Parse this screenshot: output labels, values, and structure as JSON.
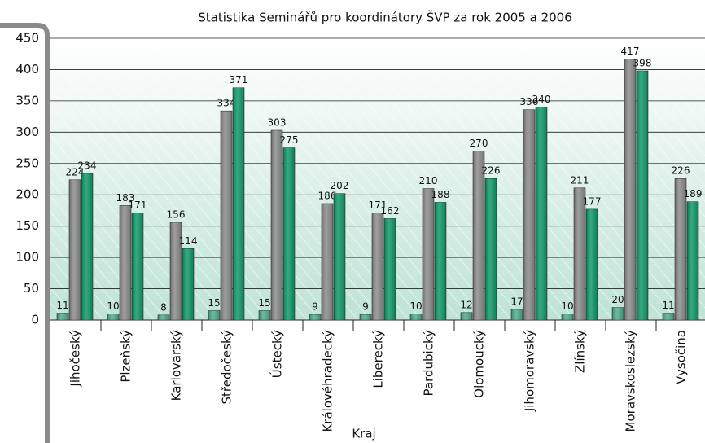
{
  "chart_data": {
    "type": "bar",
    "title": "Statistika Seminářů pro koordinátory ŠVP za rok 2005 a 2006",
    "x_label": "Kraj",
    "categories": [
      "Jihočeský",
      "Plzeňský",
      "Karlovarský",
      "Středočeský",
      "Ústecký",
      "Královéhradecký",
      "Liberecký",
      "Pardubický",
      "Olomoucký",
      "Jihomoravský",
      "Zlínský",
      "Moravskoslezský",
      "Vysočina"
    ],
    "series": [
      {
        "color": "#4fae8c",
        "values": [
          11,
          10,
          8,
          15,
          15,
          9,
          9,
          10,
          12,
          17,
          10,
          20,
          11
        ]
      },
      {
        "color": "#8c8c8c",
        "values": [
          224,
          183,
          156,
          334,
          303,
          186,
          171,
          210,
          270,
          336,
          211,
          417,
          226
        ]
      },
      {
        "color": "#0f9a68",
        "values": [
          234,
          171,
          114,
          371,
          275,
          202,
          162,
          188,
          226,
          340,
          177,
          398,
          189
        ]
      }
    ],
    "ylim": [
      0,
      450
    ],
    "yticks": [
      0,
      50,
      100,
      150,
      200,
      250,
      300,
      350,
      400,
      450
    ],
    "grid": true
  }
}
